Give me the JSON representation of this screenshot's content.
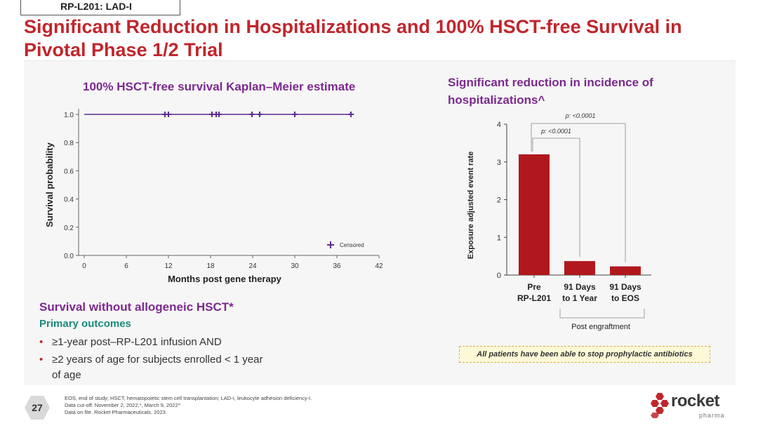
{
  "header": {
    "tag": "RP-L201: LAD-I",
    "title": "Significant Reduction in Hospitalizations and 100% HSCT-free Survival in Pivotal Phase 1/2 Trial"
  },
  "km": {
    "title": "100% HSCT-free survival Kaplan–Meier estimate",
    "legend": "Censored"
  },
  "bar": {
    "title": "Significant reduction in incidence of hospitalizations^",
    "bracket_label": "Post engraftment",
    "p1": "p: <0.0001",
    "p2": "p: <0.0001"
  },
  "chart_data": [
    {
      "type": "line",
      "title": "100% HSCT-free survival Kaplan–Meier estimate",
      "xlabel": "Months post gene therapy",
      "ylabel": "Survival probability",
      "xlim": [
        0,
        42
      ],
      "ylim": [
        0.0,
        1.0
      ],
      "xticks": [
        0,
        6,
        12,
        18,
        24,
        30,
        36,
        42
      ],
      "yticks": [
        "0.0",
        "0.2",
        "0.4",
        "0.6",
        "0.8",
        "1.0"
      ],
      "series": [
        {
          "x": [
            0,
            38
          ],
          "values": [
            1.0,
            1.0
          ]
        }
      ],
      "censored_x": [
        11.5,
        12,
        18.2,
        18.8,
        19.2,
        23.9,
        25,
        30,
        38
      ],
      "legend": [
        "Censored"
      ],
      "color": "#5a2d91"
    },
    {
      "type": "bar",
      "title": "Significant reduction in incidence of hospitalizations^",
      "ylabel": "Exposure adjusted event rate",
      "ylim": [
        0,
        4
      ],
      "yticks": [
        "0",
        "1",
        "2",
        "3",
        "4"
      ],
      "categories": [
        [
          "Pre",
          "RP-L201"
        ],
        [
          "91 Days",
          "to 1 Year"
        ],
        [
          "91 Days",
          "to EOS"
        ]
      ],
      "values": [
        3.2,
        0.37,
        0.23
      ],
      "color": "#b0181e",
      "annotations": [
        "p: <0.0001",
        "p: <0.0001",
        "Post engraftment"
      ]
    }
  ],
  "left_text": {
    "heading": "Survival without allogeneic HSCT*",
    "subheading": "Primary outcomes",
    "bullets": [
      "≥1-year post–RP-L201 infusion AND",
      "≥2 years of age for subjects enrolled < 1 year of age"
    ]
  },
  "note": "All patients have been able to stop prophylactic antibiotics",
  "footer": {
    "page": "27",
    "lines": [
      "EOS, end of study; HSCT, hematopoietic stem cell transplantation; LAD-I, leukocyte adhesion deficiency-I.",
      "Data cut-off: November 2, 2022,*, March 9, 2022^",
      "Data on file. Rocket Pharmaceuticals. 2023."
    ]
  },
  "logo": {
    "word": "rocket",
    "sub": "pharma",
    "color": "#c0262c"
  }
}
